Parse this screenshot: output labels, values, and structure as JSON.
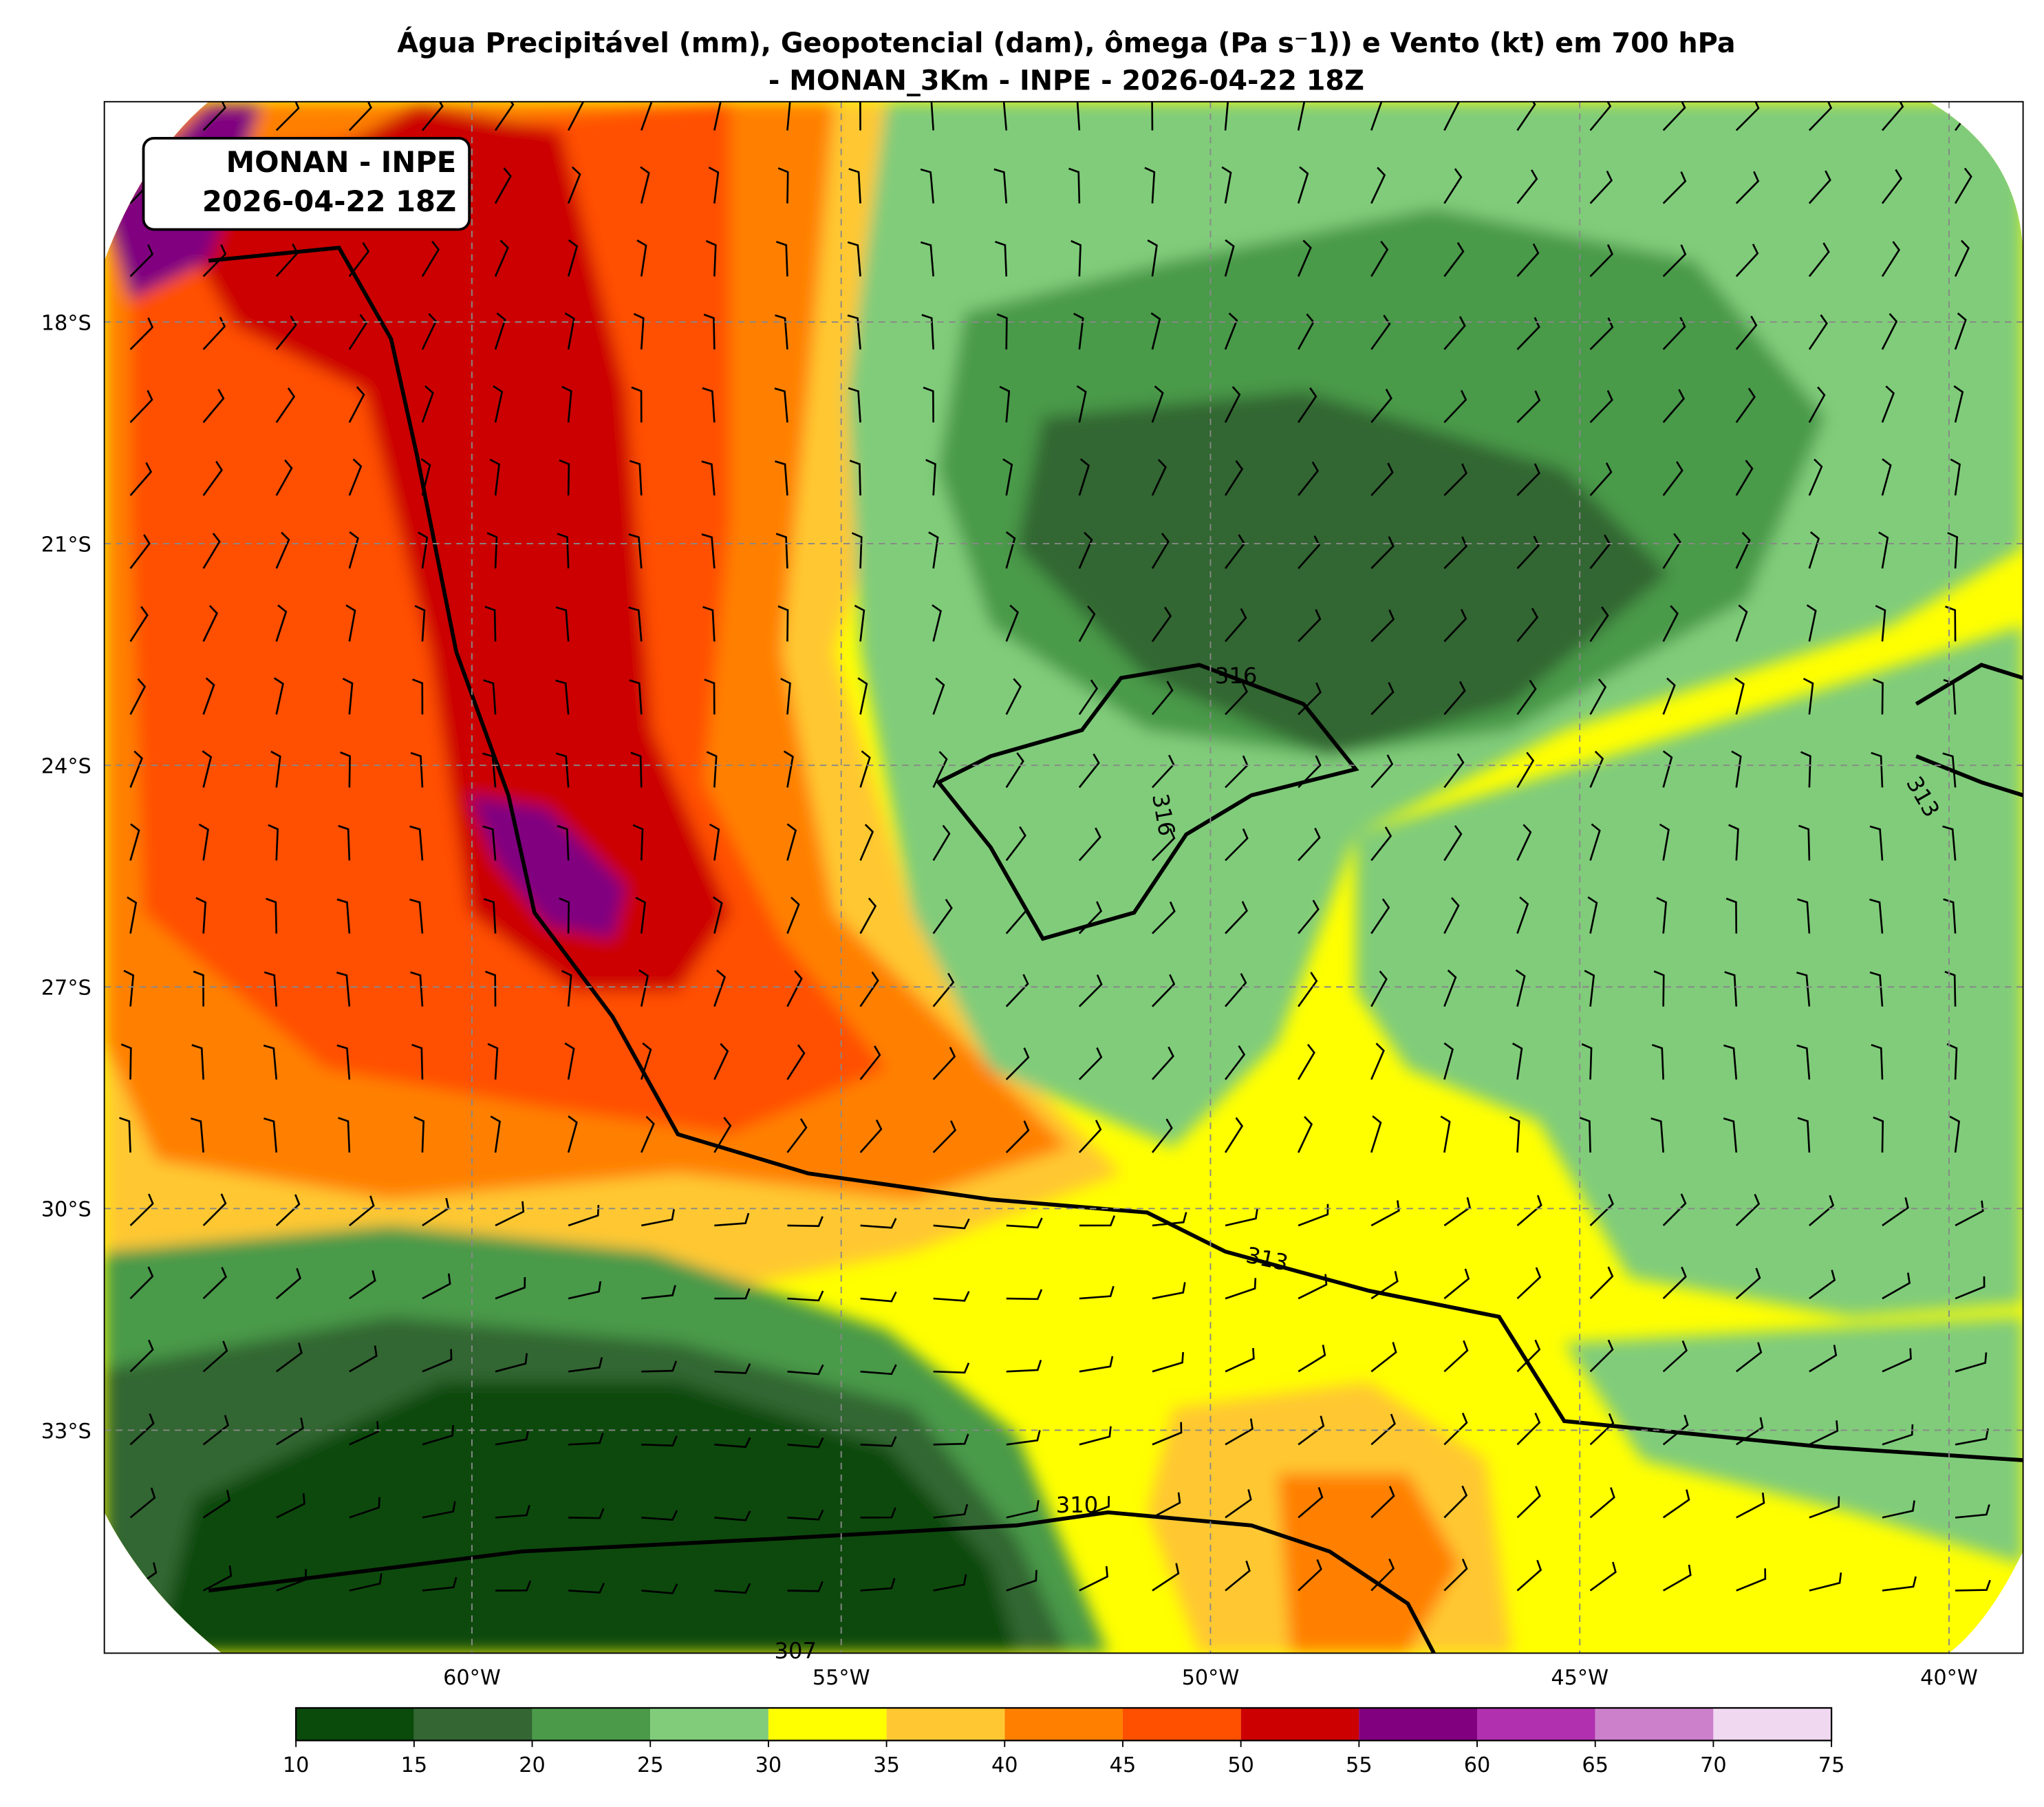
{
  "header": {
    "title_lines": [
      "Água Precipitável (mm), Geopotencial (dam), ômega (Pa s⁻1)) e Vento (kt) em 700 hPa",
      "- MONAN_3Km - INPE - 2026-04-22 18Z"
    ]
  },
  "info_box": {
    "lines": [
      "MONAN - INPE",
      "2026-04-22 18Z"
    ]
  },
  "map": {
    "lat_labels": [
      "18°S",
      "21°S",
      "24°S",
      "27°S",
      "30°S",
      "33°S"
    ],
    "lon_labels": [
      "60°W",
      "55°W",
      "50°W",
      "45°W",
      "40°W"
    ],
    "contour_labels": [
      "316",
      "316",
      "313",
      "313",
      "310",
      "307"
    ]
  },
  "colorbar": {
    "ticks": [
      10,
      15,
      20,
      25,
      30,
      35,
      40,
      45,
      50,
      55,
      60,
      65,
      70,
      75
    ],
    "colors": [
      "#0a4a0a",
      "#336633",
      "#4a9a4a",
      "#80cc7a",
      "#ffff00",
      "#ffc832",
      "#ff8000",
      "#ff5000",
      "#cc0000",
      "#800080",
      "#b030b0",
      "#cc80cc",
      "#f0d8f0"
    ]
  }
}
